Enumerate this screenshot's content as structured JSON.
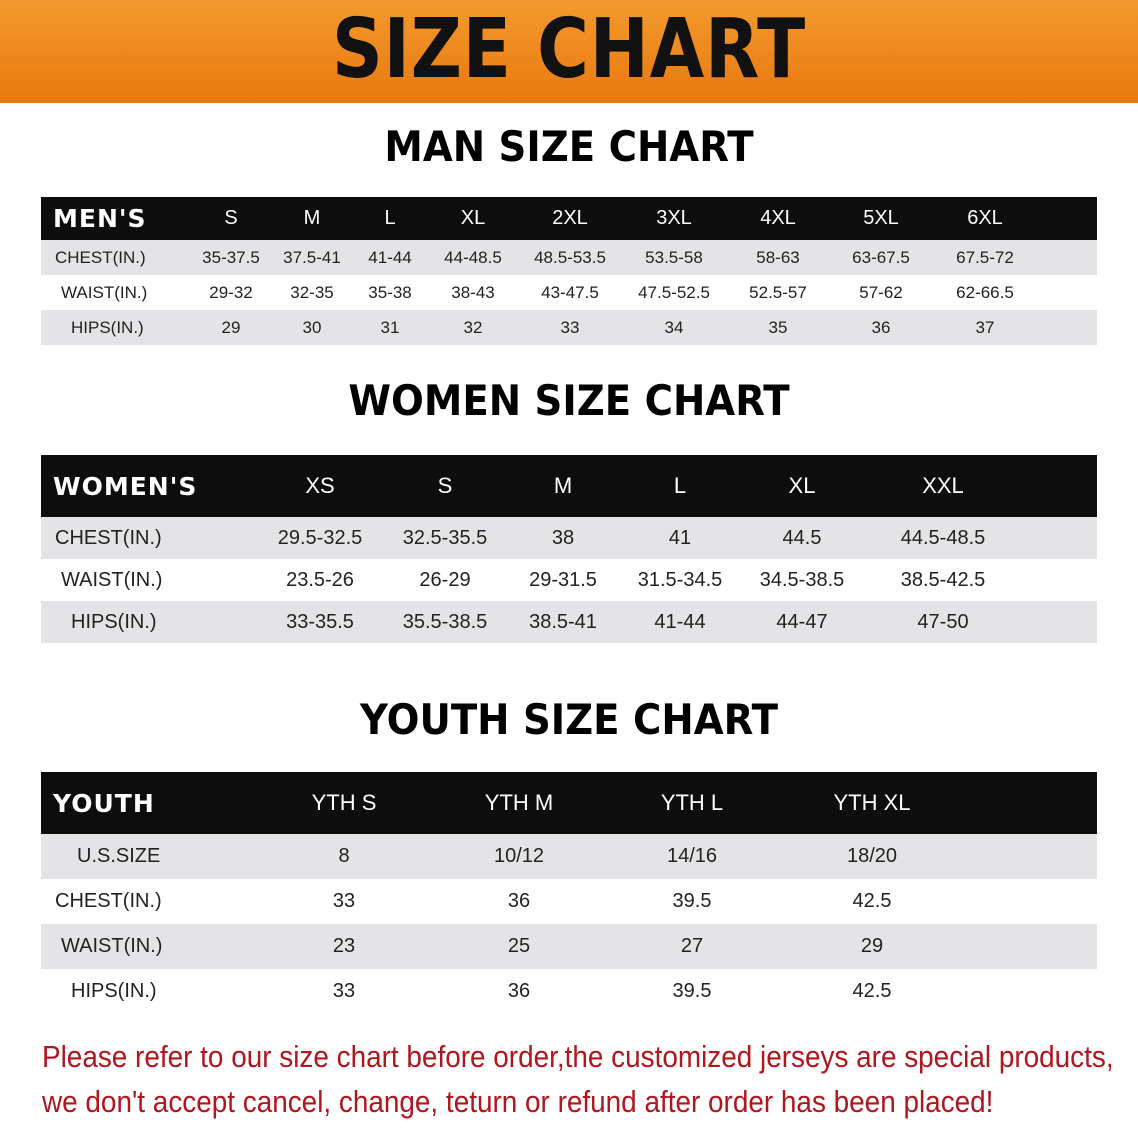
{
  "banner": {
    "title": "SIZE CHART",
    "color": "#ef8518"
  },
  "men": {
    "title": "MAN SIZE CHART",
    "header": [
      "MEN'S",
      "S",
      "M",
      "L",
      "XL",
      "2XL",
      "3XL",
      "4XL",
      "5XL",
      "6XL"
    ],
    "rows": [
      [
        "CHEST(IN.)",
        "35-37.5",
        "37.5-41",
        "41-44",
        "44-48.5",
        "48.5-53.5",
        "53.5-58",
        "58-63",
        "63-67.5",
        "67.5-72"
      ],
      [
        "WAIST(IN.)",
        "29-32",
        "32-35",
        "35-38",
        "38-43",
        "43-47.5",
        "47.5-52.5",
        "52.5-57",
        "57-62",
        "62-66.5"
      ],
      [
        "HIPS(IN.)",
        "29",
        "30",
        "31",
        "32",
        "33",
        "34",
        "35",
        "36",
        "37"
      ]
    ]
  },
  "women": {
    "title": "WOMEN SIZE CHART",
    "header": [
      "WOMEN'S",
      "XS",
      "S",
      "M",
      "L",
      "XL",
      "XXL"
    ],
    "rows": [
      [
        "CHEST(IN.)",
        "29.5-32.5",
        "32.5-35.5",
        "38",
        "41",
        "44.5",
        "44.5-48.5"
      ],
      [
        "WAIST(IN.)",
        "23.5-26",
        "26-29",
        "29-31.5",
        "31.5-34.5",
        "34.5-38.5",
        "38.5-42.5"
      ],
      [
        "HIPS(IN.)",
        "33-35.5",
        "35.5-38.5",
        "38.5-41",
        "41-44",
        "44-47",
        "47-50"
      ]
    ]
  },
  "youth": {
    "title": "YOUTH SIZE CHART",
    "header": [
      "YOUTH",
      "YTH S",
      "YTH M",
      "YTH L",
      "YTH XL"
    ],
    "rows": [
      [
        "U.S.SIZE",
        "8",
        "10/12",
        "14/16",
        "18/20"
      ],
      [
        "CHEST(IN.)",
        "33",
        "36",
        "39.5",
        "42.5"
      ],
      [
        "WAIST(IN.)",
        "23",
        "25",
        "27",
        "29"
      ],
      [
        "HIPS(IN.)",
        "33",
        "36",
        "39.5",
        "42.5"
      ]
    ]
  },
  "note": {
    "line1": "Please refer to our size chart before order,the customized jerseys are special products,",
    "line2": "we don't accept cancel, change, teturn or refund after order has been placed!",
    "color": "#b0161e"
  }
}
